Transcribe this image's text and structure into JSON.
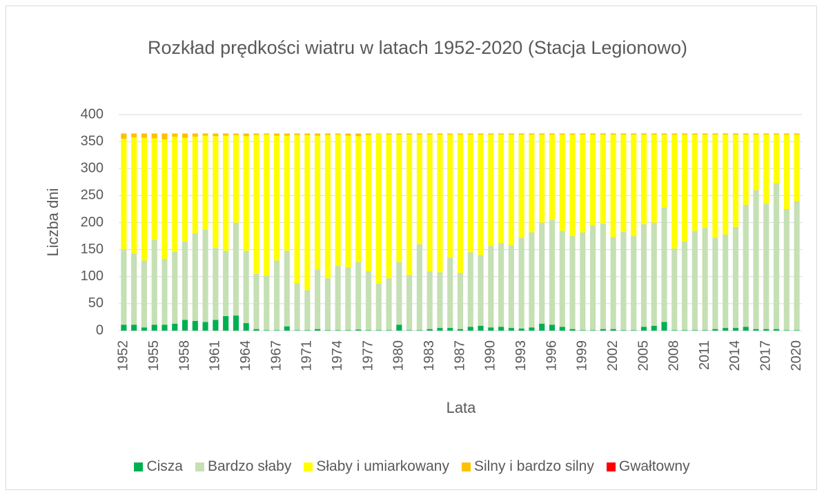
{
  "chart_data": {
    "type": "stacked_bar",
    "title": "Rozkład prędkości wiatru w latach 1952-2020 (Stacja Legionowo)",
    "xlabel": "Lata",
    "ylabel": "Liczba dni",
    "categories": [
      "1952",
      null,
      null,
      "1955",
      null,
      null,
      "1958",
      null,
      null,
      "1961",
      null,
      null,
      "1964",
      null,
      null,
      "1967",
      null,
      null,
      "1971",
      null,
      null,
      "1974",
      null,
      null,
      "1977",
      null,
      null,
      "1980",
      null,
      null,
      "1983",
      null,
      null,
      "1987",
      null,
      null,
      "1990",
      null,
      null,
      "1993",
      null,
      null,
      "1996",
      null,
      null,
      "1999",
      null,
      null,
      "2002",
      null,
      null,
      "2005",
      null,
      null,
      "2008",
      null,
      null,
      "2011",
      null,
      null,
      "2014",
      null,
      null,
      "2017",
      null,
      null,
      "2020"
    ],
    "series": [
      {
        "name": "Cisza",
        "color": "#00b050",
        "values": [
          11,
          11,
          6,
          11,
          11,
          13,
          20,
          18,
          16,
          20,
          27,
          28,
          14,
          3,
          1,
          1,
          8,
          1,
          1,
          3,
          1,
          1,
          1,
          2,
          1,
          1,
          1,
          11,
          1,
          1,
          3,
          5,
          5,
          3,
          7,
          9,
          6,
          7,
          5,
          4,
          6,
          13,
          11,
          7,
          3,
          1,
          1,
          3,
          3,
          1,
          1,
          7,
          9,
          16,
          1,
          1,
          1,
          1,
          3,
          5,
          5,
          7,
          3,
          3,
          3,
          1,
          1
        ]
      },
      {
        "name": "Bardzo słaby",
        "color": "#c5e0b4",
        "values": [
          139,
          132,
          124,
          157,
          122,
          133,
          145,
          162,
          171,
          133,
          121,
          172,
          134,
          102,
          101,
          129,
          140,
          87,
          74,
          110,
          96,
          119,
          116,
          125,
          109,
          86,
          96,
          116,
          102,
          159,
          107,
          103,
          130,
          104,
          138,
          131,
          151,
          155,
          153,
          168,
          176,
          187,
          194,
          178,
          172,
          181,
          194,
          195,
          170,
          182,
          174,
          190,
          191,
          212,
          151,
          164,
          184,
          189,
          169,
          173,
          187,
          226,
          257,
          232,
          270,
          224,
          239
        ]
      },
      {
        "name": "Słaby i umiarkowany",
        "color": "#ffff00",
        "values": [
          205,
          215,
          227,
          188,
          221,
          213,
          192,
          179,
          174,
          207,
          213,
          162,
          212,
          257,
          261,
          231,
          213,
          274,
          287,
          248,
          265,
          243,
          244,
          233,
          252,
          277,
          266,
          236,
          260,
          203,
          253,
          255,
          228,
          256,
          218,
          223,
          206,
          201,
          205,
          191,
          181,
          163,
          158,
          178,
          188,
          181,
          168,
          165,
          190,
          180,
          188,
          166,
          163,
          135,
          211,
          198,
          178,
          173,
          191,
          185,
          171,
          130,
          103,
          128,
          90,
          138,
          123
        ]
      },
      {
        "name": "Silny i bardzo silny",
        "color": "#ffc000",
        "values": [
          10,
          7,
          8,
          9,
          11,
          6,
          8,
          6,
          4,
          5,
          4,
          3,
          5,
          3,
          2,
          4,
          4,
          3,
          3,
          4,
          3,
          2,
          4,
          5,
          3,
          1,
          2,
          2,
          2,
          2,
          2,
          2,
          2,
          2,
          2,
          2,
          2,
          2,
          2,
          2,
          2,
          2,
          2,
          2,
          2,
          2,
          2,
          2,
          2,
          2,
          2,
          2,
          2,
          2,
          2,
          2,
          2,
          2,
          2,
          2,
          2,
          2,
          2,
          2,
          2,
          2,
          2
        ]
      },
      {
        "name": "Gwałtowny",
        "color": "#ff0000",
        "values": [
          0,
          0,
          0,
          0,
          0,
          0,
          0,
          0,
          0,
          0,
          0,
          0,
          0,
          0,
          0,
          0,
          0,
          0,
          0,
          0,
          0,
          0,
          0,
          0,
          0,
          0,
          0,
          0,
          0,
          0,
          0,
          0,
          0,
          0,
          0,
          0,
          0,
          0,
          0,
          0,
          0,
          0,
          0,
          0,
          0,
          0,
          0,
          0,
          0,
          0,
          0,
          0,
          0,
          0,
          0,
          0,
          0,
          0,
          0,
          0,
          0,
          0,
          0,
          0,
          0,
          0,
          0
        ]
      }
    ],
    "ylim": [
      0,
      400
    ],
    "yticks": [
      0,
      50,
      100,
      150,
      200,
      250,
      300,
      350,
      400
    ],
    "grid": true,
    "legend": "bottom"
  }
}
